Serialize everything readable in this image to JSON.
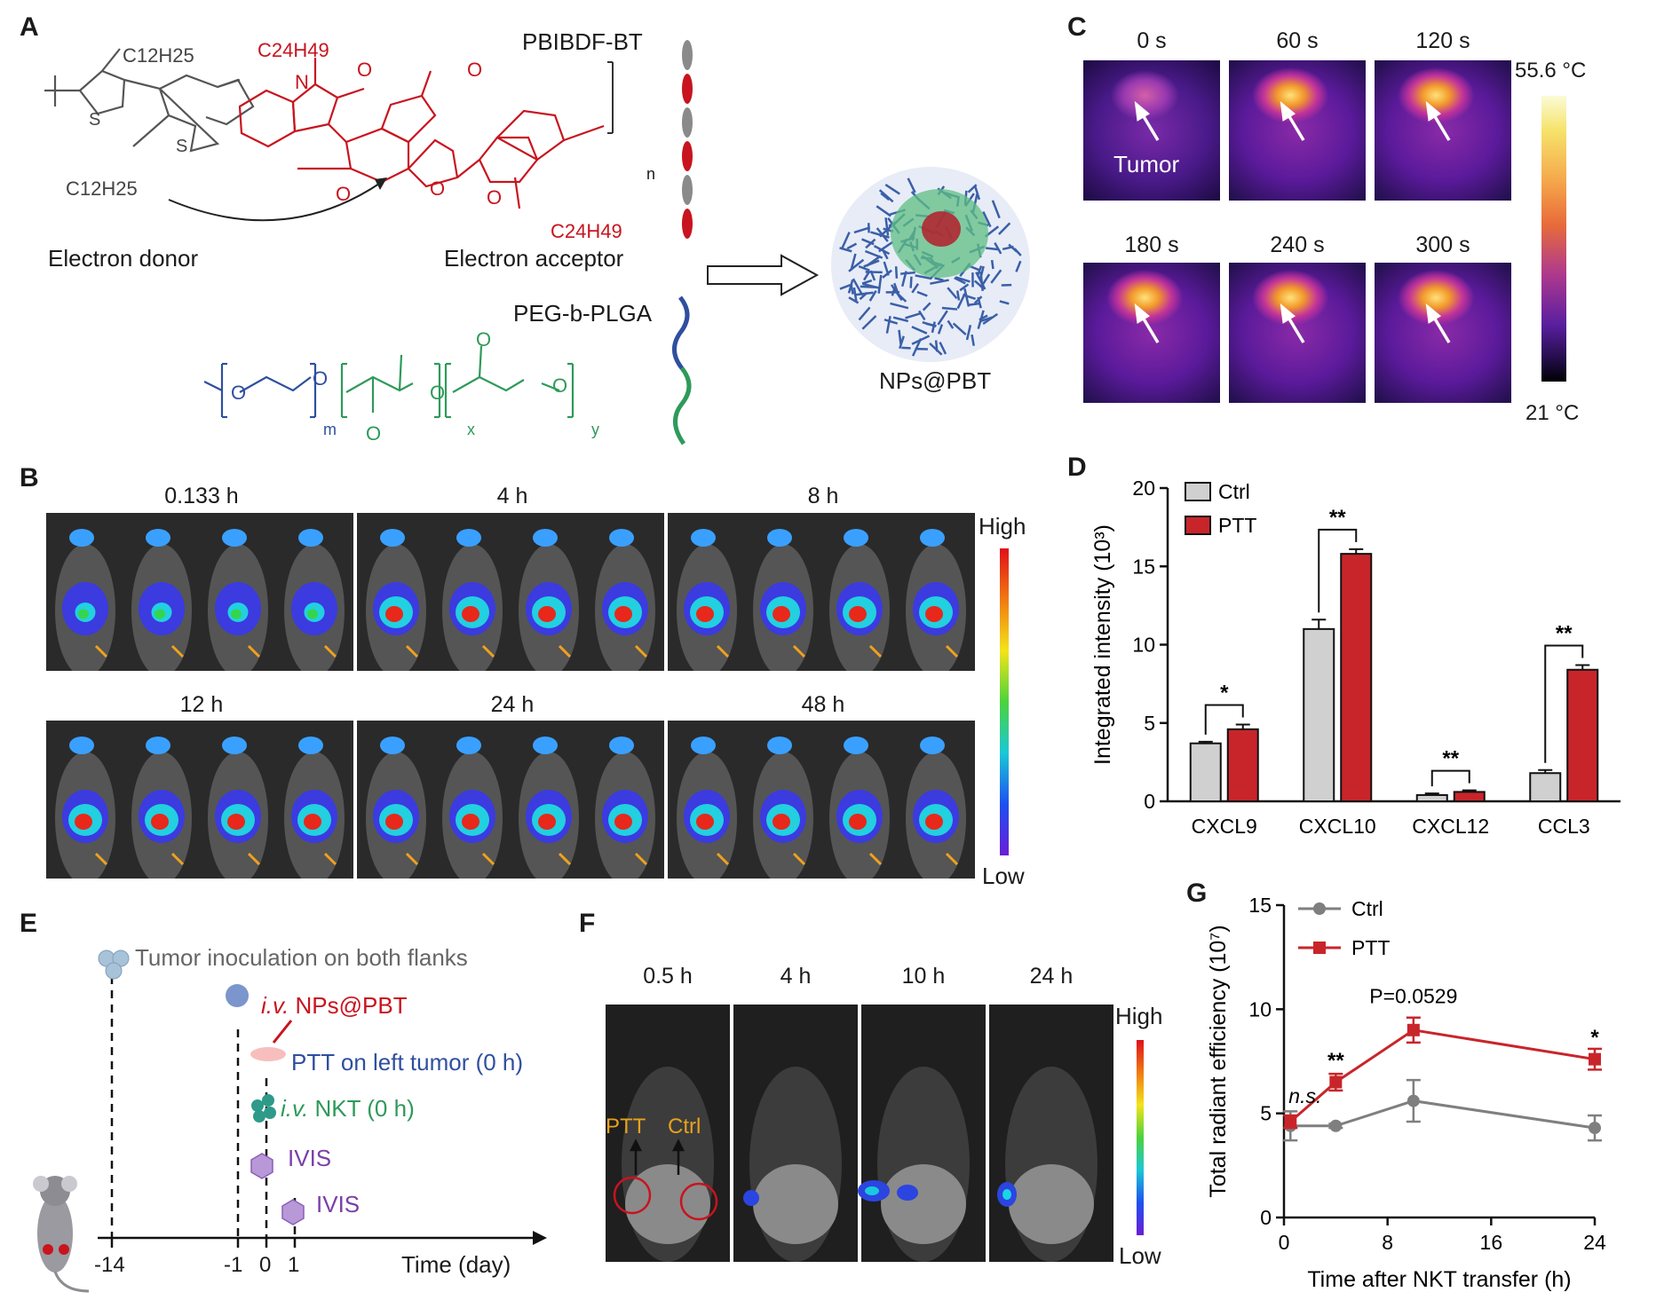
{
  "panels": {
    "A": {
      "label": "A",
      "polymer_name": "PBIBDF-BT",
      "donor_label": "Electron donor",
      "acceptor_label": "Electron acceptor",
      "alkyl_donor_1": "C12H25",
      "alkyl_donor_2": "C12H25",
      "alkyl_acceptor_1": "C24H49",
      "alkyl_acceptor_2": "C24H49",
      "repeat_n": "n",
      "copolymer_name": "PEG-b-PLGA",
      "repeat_m": "m",
      "repeat_x": "x",
      "repeat_y": "y",
      "nanoparticle_label": "NPs@PBT",
      "atoms": {
        "S": "S",
        "N": "N",
        "O": "O"
      }
    },
    "B": {
      "label": "B",
      "timepoints": [
        "0.133 h",
        "4 h",
        "8 h",
        "12 h",
        "24 h",
        "48 h"
      ],
      "scale_high": "High",
      "scale_low": "Low"
    },
    "C": {
      "label": "C",
      "timepoints": [
        "0 s",
        "60 s",
        "120 s",
        "180 s",
        "240 s",
        "300 s"
      ],
      "tumor_label": "Tumor",
      "scale_max": "55.6 °C",
      "scale_min": "21 °C"
    },
    "D": {
      "label": "D",
      "legend": [
        "Ctrl",
        "PTT"
      ],
      "significance": [
        "*",
        "**",
        "**",
        "**"
      ]
    },
    "E": {
      "label": "E",
      "events": [
        {
          "text": "Tumor inoculation on both flanks"
        },
        {
          "italic": "i.v.",
          "text": " NPs@PBT"
        },
        {
          "text": "PTT on left tumor (0 h)"
        },
        {
          "italic": "i.v.",
          "text": " NKT (0 h)"
        },
        {
          "text": "IVIS"
        },
        {
          "text": "IVIS"
        }
      ],
      "axis_ticks": [
        "-14",
        "-1",
        "0",
        "1"
      ],
      "axis_label": "Time (day)"
    },
    "F": {
      "label": "F",
      "timepoints": [
        "0.5 h",
        "4 h",
        "10 h",
        "24 h"
      ],
      "left_label": "PTT",
      "right_label": "Ctrl",
      "scale_high": "High",
      "scale_low": "Low"
    },
    "G": {
      "label": "G",
      "annotations": {
        "ns": "n.s.",
        "p_value": "P=0.0529",
        "sig_4h": "**",
        "sig_24h": "*"
      }
    }
  },
  "chart_data": [
    {
      "panel": "D",
      "type": "bar",
      "categories": [
        "CXCL9",
        "CXCL10",
        "CXCL12",
        "CCL3"
      ],
      "series": [
        {
          "name": "Ctrl",
          "values": [
            3.7,
            11.0,
            0.4,
            1.8
          ],
          "errors": [
            0.1,
            0.6,
            0.1,
            0.2
          ],
          "color": "#d0d0d0"
        },
        {
          "name": "PTT",
          "values": [
            4.6,
            15.8,
            0.6,
            8.4
          ],
          "errors": [
            0.3,
            0.3,
            0.1,
            0.3
          ],
          "color": "#c8252b"
        }
      ],
      "ylabel": "Integrated intensity (10³)",
      "ylim": [
        0,
        20
      ],
      "yticks": [
        0,
        5,
        10,
        15,
        20
      ],
      "significance": [
        "*",
        "**",
        "**",
        "**"
      ]
    },
    {
      "panel": "G",
      "type": "line",
      "x": [
        0.5,
        4,
        10,
        24
      ],
      "series": [
        {
          "name": "Ctrl",
          "values": [
            4.4,
            4.4,
            5.6,
            4.3
          ],
          "errors": [
            0.7,
            0.1,
            1.0,
            0.6
          ],
          "color": "#7f7f7f"
        },
        {
          "name": "PTT",
          "values": [
            4.6,
            6.5,
            9.0,
            7.6
          ],
          "errors": [
            0.3,
            0.4,
            0.6,
            0.5
          ],
          "color": "#c8252b"
        }
      ],
      "xlabel": "Time after NKT transfer (h)",
      "ylabel": "Total radiant efficiency (10⁷)",
      "xlim": [
        0,
        24
      ],
      "ylim": [
        0,
        15
      ],
      "xticks": [
        0,
        8,
        16,
        24
      ],
      "yticks": [
        0,
        5,
        10,
        15
      ]
    }
  ]
}
